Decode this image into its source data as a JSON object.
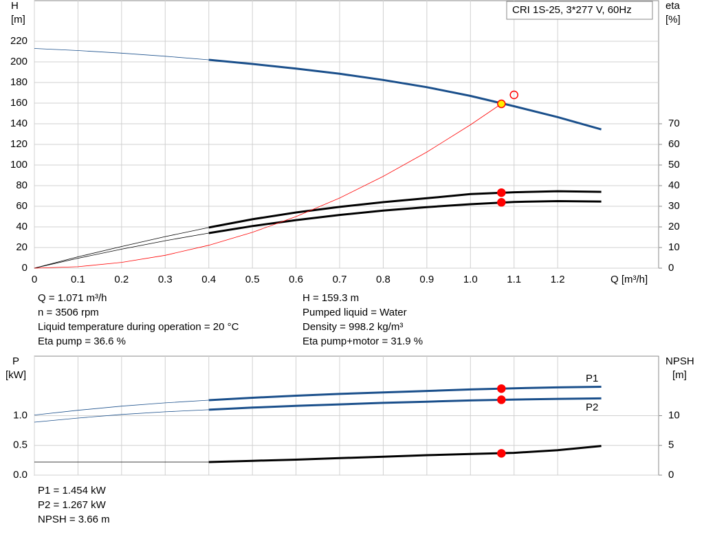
{
  "title_box": "CRI 1S-25, 3*277 V, 60Hz",
  "info_top": [
    [
      "Q = 1.071 m³/h",
      "n = 3506 rpm",
      "Liquid temperature during operation = 20 °C",
      "Eta pump = 36.6 %"
    ],
    [
      "H = 159.3 m",
      "Pumped liquid = Water",
      "Density = 998.2 kg/m³",
      "Eta pump+motor = 31.9 %"
    ]
  ],
  "info_bottom": [
    "P1 = 1.454 kW",
    "P2 = 1.267 kW",
    "NPSH = 3.66 m"
  ],
  "chart_data": [
    {
      "type": "line",
      "ylabel": "H",
      "yunit": "[m]",
      "y2label": "eta",
      "y2unit": "[%]",
      "xlabel": "Q [m³/h]",
      "xlim": [
        0,
        1.4
      ],
      "xticks": [
        0,
        0.1,
        0.2,
        0.3,
        0.4,
        0.5,
        0.6,
        0.7,
        0.8,
        0.9,
        {
          "value": 1,
          "label": "1.0"
        },
        1.1,
        1.2
      ],
      "ylim": [
        0,
        260
      ],
      "yticks": [
        0,
        20,
        40,
        60,
        80,
        100,
        120,
        140,
        160,
        180,
        200,
        220
      ],
      "y2lim": [
        0,
        130
      ],
      "y2ticks": [
        0,
        10,
        20,
        30,
        40,
        50,
        60,
        70
      ],
      "grid": true,
      "operating_range": [
        0.4,
        1.3
      ],
      "x": [
        0,
        0.1,
        0.2,
        0.3,
        0.4,
        0.5,
        0.6,
        0.7,
        0.8,
        0.9,
        1.0,
        1.1,
        1.2,
        1.3
      ],
      "series": [
        {
          "color": "#1a4f8b",
          "axis": "y",
          "values": [
            213,
            211,
            208.5,
            205.5,
            202,
            198,
            193.5,
            188.5,
            182.5,
            175.5,
            167,
            157,
            146.5,
            134.5
          ]
        },
        {
          "color": "#000000",
          "axis": "y2",
          "values": [
            0,
            5.5,
            10.5,
            15.3,
            19.7,
            23.7,
            27.0,
            29.7,
            32.0,
            33.9,
            35.9,
            36.8,
            37.3,
            37.0
          ]
        },
        {
          "color": "#000000",
          "axis": "y2",
          "values": [
            0,
            4.8,
            9.2,
            13.3,
            17,
            20.4,
            23.3,
            25.8,
            27.9,
            29.6,
            31.0,
            32.1,
            32.5,
            32.3
          ]
        },
        {
          "color": "#ff0000",
          "axis": "y",
          "thin": true,
          "x": [
            0,
            0.1,
            0.2,
            0.3,
            0.4,
            0.5,
            0.6,
            0.7,
            0.8,
            0.9,
            1.0,
            1.071
          ],
          "values": [
            0,
            1.4,
            5.6,
            12.5,
            22.2,
            34.7,
            50,
            68,
            89,
            112.6,
            139,
            159.3
          ]
        }
      ],
      "points": [
        {
          "x": 1.071,
          "value": 159.3,
          "axis": "y",
          "fill": "#ffee00",
          "stroke": "#ff0000"
        },
        {
          "x": 1.071,
          "value": 36.6,
          "axis": "y2",
          "fill": "#ff0000",
          "stroke": "#ff0000"
        },
        {
          "x": 1.071,
          "value": 31.9,
          "axis": "y2",
          "fill": "#ff0000",
          "stroke": "#ff0000"
        },
        {
          "x": 1.1,
          "value": 168,
          "axis": "y",
          "fill": "none",
          "stroke": "#ff0000"
        }
      ]
    },
    {
      "type": "line",
      "ylabel": "P",
      "yunit": "[kW]",
      "y2label": "NPSH",
      "y2unit": "[m]",
      "xlim": [
        0,
        1.4
      ],
      "ylim": [
        0,
        2
      ],
      "yticks": [
        {
          "value": 0,
          "label": "0.0"
        },
        0.5,
        {
          "value": 1,
          "label": "1.0"
        }
      ],
      "y2lim": [
        0,
        20
      ],
      "y2ticks": [
        0,
        5,
        10
      ],
      "grid": true,
      "operating_range": [
        0.4,
        1.3
      ],
      "x": [
        0,
        0.1,
        0.2,
        0.3,
        0.4,
        0.5,
        0.6,
        0.7,
        0.8,
        0.9,
        1.0,
        1.1,
        1.2,
        1.3
      ],
      "series": [
        {
          "name": "P1",
          "color": "#1a4f8b",
          "axis": "y",
          "values": [
            1.01,
            1.09,
            1.16,
            1.215,
            1.26,
            1.3,
            1.335,
            1.365,
            1.39,
            1.415,
            1.44,
            1.46,
            1.475,
            1.485
          ]
        },
        {
          "name": "P2",
          "color": "#1a4f8b",
          "axis": "y",
          "values": [
            0.89,
            0.96,
            1.02,
            1.065,
            1.1,
            1.135,
            1.165,
            1.19,
            1.215,
            1.235,
            1.255,
            1.27,
            1.282,
            1.29
          ]
        },
        {
          "color": "#000000",
          "axis": "y2",
          "values": [
            2.2,
            2.2,
            2.2,
            2.2,
            2.2,
            2.4,
            2.6,
            2.85,
            3.1,
            3.35,
            3.55,
            3.75,
            4.2,
            4.9
          ]
        }
      ],
      "points": [
        {
          "x": 1.071,
          "value": 1.454,
          "axis": "y",
          "fill": "#ff0000",
          "stroke": "#ff0000"
        },
        {
          "x": 1.071,
          "value": 1.267,
          "axis": "y",
          "fill": "#ff0000",
          "stroke": "#ff0000"
        },
        {
          "x": 1.071,
          "value": 3.66,
          "axis": "y2",
          "fill": "#ff0000",
          "stroke": "#ff0000"
        }
      ]
    }
  ]
}
